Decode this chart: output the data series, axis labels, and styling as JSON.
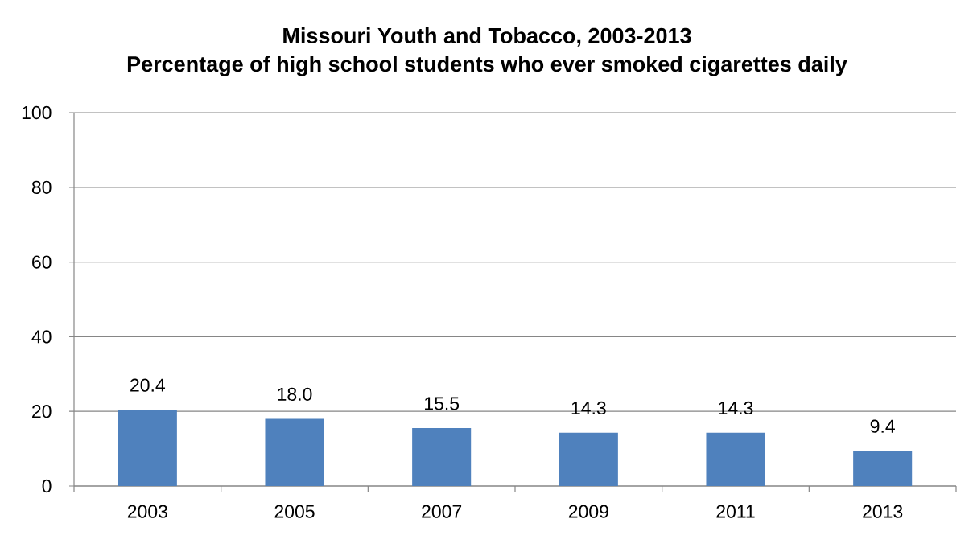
{
  "chart_data": {
    "type": "bar",
    "title": "Missouri Youth and Tobacco, 2003-2013",
    "subtitle": "Percentage of high school students who ever smoked cigarettes daily",
    "categories": [
      "2003",
      "2005",
      "2007",
      "2009",
      "2011",
      "2013"
    ],
    "values": [
      20.4,
      18.0,
      15.5,
      14.3,
      14.3,
      9.4
    ],
    "value_labels": [
      "20.4",
      "18.0",
      "15.5",
      "14.3",
      "14.3",
      "9.4"
    ],
    "color": "#4f81bd",
    "ylim": [
      0,
      100
    ],
    "yticks": [
      0,
      20,
      40,
      60,
      80,
      100
    ],
    "grid": "y"
  }
}
